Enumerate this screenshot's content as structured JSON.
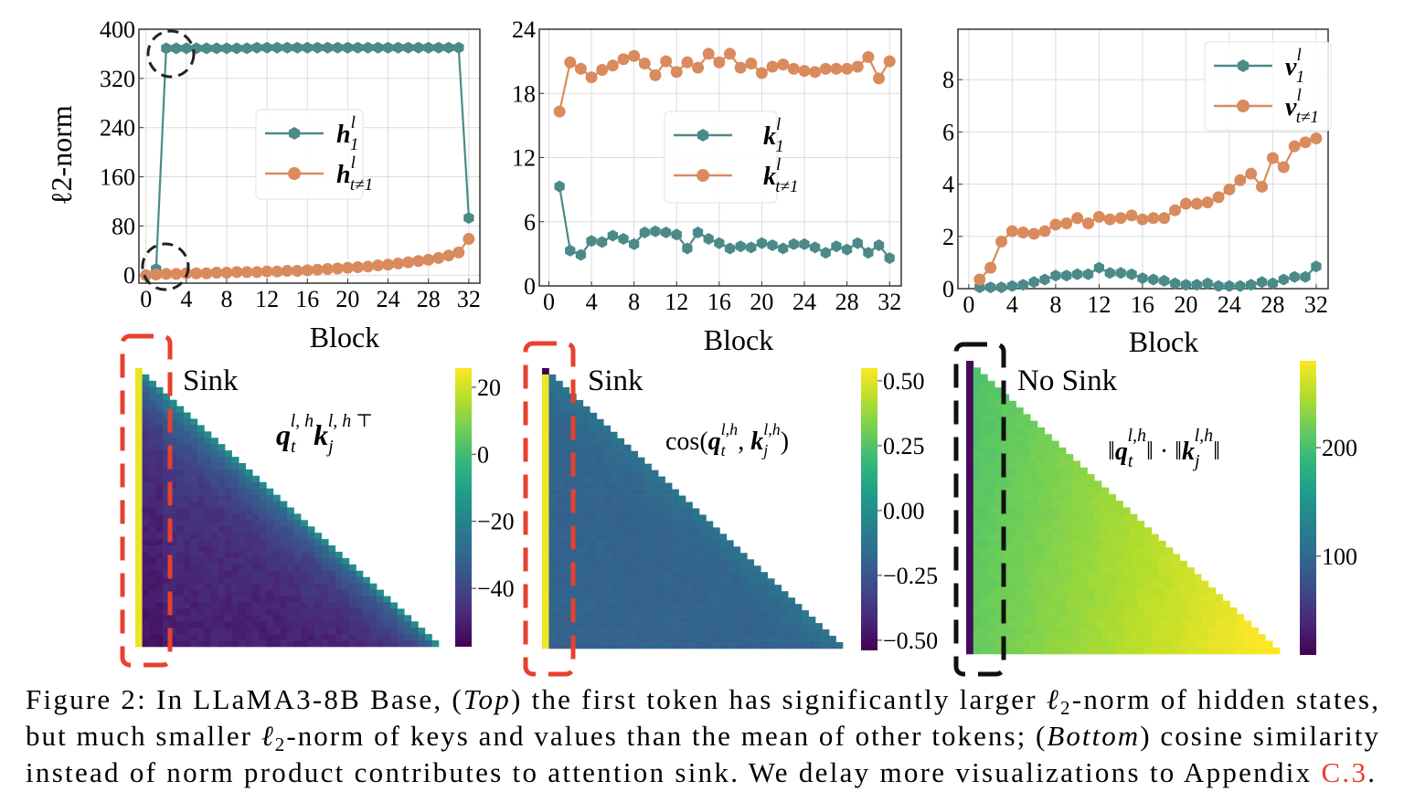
{
  "colors": {
    "teal": "#4b8a88",
    "orange": "#d98b5e",
    "red_dash": "#e8402f",
    "black_dash": "#111111",
    "link": "#e8402f"
  },
  "chart_data": [
    {
      "type": "line",
      "ylabel": "ℓ2-norm",
      "xlabel": "Block",
      "xlim": [
        -0.7,
        33.1
      ],
      "ylim": [
        -13,
        400
      ],
      "xticks": [
        "0",
        "4",
        "8",
        "12",
        "16",
        "20",
        "24",
        "28",
        "32"
      ],
      "yticks": [
        "0",
        "80",
        "160",
        "240",
        "320",
        "400"
      ],
      "grid": true,
      "legend": "center",
      "series": [
        {
          "name": "h_1^l",
          "label": {
            "base": "h",
            "sup": "l",
            "sub": "1"
          },
          "color": "teal",
          "marker": "hexagon",
          "x": [
            1,
            2,
            3,
            4,
            5,
            6,
            7,
            8,
            9,
            10,
            11,
            12,
            13,
            14,
            15,
            16,
            17,
            18,
            19,
            20,
            21,
            22,
            23,
            24,
            25,
            26,
            27,
            28,
            29,
            30,
            31,
            32
          ],
          "y": [
            10,
            369,
            369,
            369,
            369,
            369,
            369,
            369,
            369,
            369,
            370,
            370,
            370,
            370,
            370,
            370,
            370,
            370,
            370,
            370,
            370,
            370,
            370,
            370,
            370,
            370,
            370,
            370,
            370,
            370,
            370,
            93
          ]
        },
        {
          "name": "h_{t≠1}^l",
          "label": {
            "base": "h",
            "sup": "l",
            "sub": "t≠1"
          },
          "color": "orange",
          "marker": "circle",
          "x": [
            0,
            1,
            2,
            3,
            4,
            5,
            6,
            7,
            8,
            9,
            10,
            11,
            12,
            13,
            14,
            15,
            16,
            17,
            18,
            19,
            20,
            21,
            22,
            23,
            24,
            25,
            26,
            27,
            28,
            29,
            30,
            31,
            32
          ],
          "y": [
            0,
            1,
            2,
            2,
            3,
            3,
            3,
            4,
            4,
            5,
            5,
            5,
            6,
            6,
            7,
            7,
            8,
            9,
            10,
            11,
            12,
            13,
            14,
            16,
            17,
            19,
            21,
            23,
            25,
            28,
            32,
            37,
            59
          ]
        }
      ]
    },
    {
      "type": "line",
      "xlabel": "Block",
      "xlim": [
        -0.9,
        33.1
      ],
      "ylim": [
        0,
        24
      ],
      "xticks": [
        "0",
        "4",
        "8",
        "12",
        "16",
        "20",
        "24",
        "28",
        "32"
      ],
      "yticks": [
        "0",
        "6",
        "12",
        "18",
        "24"
      ],
      "grid": true,
      "legend": "center",
      "series": [
        {
          "name": "k_1^l",
          "label": {
            "base": "k",
            "sup": "l",
            "sub": "1"
          },
          "color": "teal",
          "marker": "hexagon",
          "x": [
            1,
            2,
            3,
            4,
            5,
            6,
            7,
            8,
            9,
            10,
            11,
            12,
            13,
            14,
            15,
            16,
            17,
            18,
            19,
            20,
            21,
            22,
            23,
            24,
            25,
            26,
            27,
            28,
            29,
            30,
            31,
            32
          ],
          "y": [
            9.3,
            3.3,
            2.9,
            4.2,
            4.1,
            4.7,
            4.4,
            3.9,
            5.0,
            5.1,
            5.0,
            4.8,
            3.5,
            5.0,
            4.4,
            4.0,
            3.5,
            3.7,
            3.6,
            4.0,
            3.8,
            3.5,
            3.9,
            3.9,
            3.6,
            3.1,
            3.7,
            3.4,
            4.0,
            3.1,
            3.8,
            2.6
          ]
        },
        {
          "name": "k_{t≠1}^l",
          "label": {
            "base": "k",
            "sup": "l",
            "sub": "t≠1"
          },
          "color": "orange",
          "marker": "circle",
          "x": [
            1,
            2,
            3,
            4,
            5,
            6,
            7,
            8,
            9,
            10,
            11,
            12,
            13,
            14,
            15,
            16,
            17,
            18,
            19,
            20,
            21,
            22,
            23,
            24,
            25,
            26,
            27,
            28,
            29,
            30,
            31,
            32
          ],
          "y": [
            16.3,
            20.9,
            20.3,
            19.5,
            20.2,
            20.6,
            21.2,
            21.5,
            20.8,
            19.7,
            21.0,
            20.0,
            20.9,
            20.4,
            21.7,
            20.9,
            21.7,
            20.4,
            20.8,
            19.9,
            20.5,
            20.7,
            20.3,
            20.1,
            20.0,
            20.3,
            20.3,
            20.3,
            20.5,
            21.4,
            19.4,
            21.0
          ]
        }
      ]
    },
    {
      "type": "line",
      "xlabel": "Block",
      "xlim": [
        -1,
        33.1
      ],
      "ylim": [
        0,
        9.93
      ],
      "xticks": [
        "0",
        "4",
        "8",
        "12",
        "16",
        "20",
        "24",
        "28",
        "32"
      ],
      "yticks": [
        "0",
        "2",
        "4",
        "6",
        "8"
      ],
      "grid": true,
      "legend": "top-right",
      "series": [
        {
          "name": "v_1^l",
          "label": {
            "base": "v",
            "sup": "l",
            "sub": "1"
          },
          "color": "teal",
          "marker": "hexagon",
          "x": [
            1,
            2,
            3,
            4,
            5,
            6,
            7,
            8,
            9,
            10,
            11,
            12,
            13,
            14,
            15,
            16,
            17,
            18,
            19,
            20,
            21,
            22,
            23,
            24,
            25,
            26,
            27,
            28,
            29,
            30,
            31,
            32
          ],
          "y": [
            0.05,
            0.05,
            0.05,
            0.1,
            0.15,
            0.25,
            0.35,
            0.5,
            0.5,
            0.55,
            0.55,
            0.8,
            0.6,
            0.6,
            0.55,
            0.4,
            0.35,
            0.3,
            0.2,
            0.15,
            0.15,
            0.2,
            0.1,
            0.1,
            0.1,
            0.15,
            0.25,
            0.2,
            0.35,
            0.45,
            0.45,
            0.85
          ]
        },
        {
          "name": "v_{t≠1}^l",
          "label": {
            "base": "v",
            "sup": "l",
            "sub": "t≠1"
          },
          "color": "orange",
          "marker": "circle",
          "x": [
            1,
            2,
            3,
            4,
            5,
            6,
            7,
            8,
            9,
            10,
            11,
            12,
            13,
            14,
            15,
            16,
            17,
            18,
            19,
            20,
            21,
            22,
            23,
            24,
            25,
            26,
            27,
            28,
            29,
            30,
            31,
            32
          ],
          "y": [
            0.35,
            0.8,
            1.8,
            2.2,
            2.15,
            2.1,
            2.2,
            2.45,
            2.5,
            2.7,
            2.5,
            2.75,
            2.65,
            2.7,
            2.8,
            2.65,
            2.7,
            2.7,
            3.0,
            3.25,
            3.25,
            3.3,
            3.5,
            3.8,
            4.15,
            4.4,
            3.9,
            5.0,
            4.65,
            5.45,
            5.6,
            5.75
          ]
        }
      ]
    },
    {
      "type": "heatmap",
      "label": "Sink",
      "formula": {
        "q": "q",
        "qsub": "t",
        "qsup": "l, h",
        "k": "k",
        "ksub": "j",
        "ksup": "l, h ⊤"
      },
      "colormap": "viridis",
      "colorbar": {
        "range": [
          -57.4,
          25.7
        ],
        "ticks": [
          20,
          0,
          -20,
          -40
        ],
        "tick_labels": [
          "20",
          "0",
          "−20",
          "−40"
        ]
      },
      "highlight": "red"
    },
    {
      "type": "heatmap",
      "label": "Sink",
      "formula": {
        "pre": "cos(",
        "q": "q",
        "qsub": "t",
        "qsup": "l,h",
        "mid": ", ",
        "k": "k",
        "ksub": "j",
        "ksup": "l,h",
        "post": ")"
      },
      "colormap": "viridis",
      "colorbar": {
        "range": [
          -0.539,
          0.549
        ],
        "ticks": [
          0.5,
          0.25,
          0,
          -0.25,
          -0.5
        ],
        "tick_labels": [
          "0.50",
          "0.25",
          "0.00",
          "−0.25",
          "−0.50"
        ]
      },
      "highlight": "red"
    },
    {
      "type": "heatmap",
      "label": "No Sink",
      "formula": {
        "pre": "‖",
        "q": "q",
        "qsub": "t",
        "qsup": "l,h",
        "mid": "‖ · ‖",
        "k": "k",
        "ksub": "j",
        "ksup": "l,h",
        "post": "‖"
      },
      "colormap": "viridis",
      "colorbar": {
        "range": [
          9,
          280
        ],
        "ticks": [
          200,
          100
        ],
        "tick_labels": [
          "200",
          "100"
        ]
      },
      "highlight": "black"
    }
  ],
  "caption": {
    "line1": {
      "a": "Figure 2: In LLaMA3-8B Base, (",
      "b": "Top",
      "c": ") the first token has significantly larger ",
      "d": "ℓ",
      "e": "2",
      "f": "-norm of hidden states,"
    },
    "line2": {
      "a": "but much smaller ",
      "b": "ℓ",
      "c": "2",
      "d": "-norm of keys and values than the mean of other tokens; (",
      "e": "Bottom",
      "f": ") cosine similarity"
    },
    "line3": {
      "a": "instead of norm product contributes to attention sink. We delay more visualizations to Appendix ",
      "link": "C.3",
      "end": "."
    }
  }
}
